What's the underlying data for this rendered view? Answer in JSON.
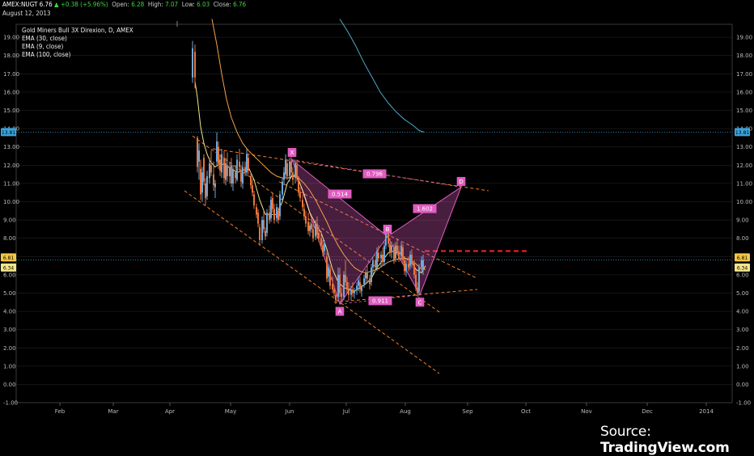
{
  "header": {
    "symbol": "AMEX:NUGT 6.76",
    "change": "+0.38 (+5.96%)",
    "open_label": "Open:",
    "open": "6.28",
    "high_label": "High:",
    "high": "7.07",
    "low_label": "Low:",
    "low": "6.03",
    "close_label": "Close:",
    "close": "6.76",
    "date": "August 12, 2013"
  },
  "legend": {
    "title": "Gold Miners Bull 3X Direxion, D, AMEX",
    "items": [
      "EMA (30, close)",
      "EMA (9, close)",
      "EMA (100, close)"
    ]
  },
  "source": {
    "prefix": "Source: ",
    "brand": "TradingView.com"
  },
  "colors": {
    "background": "#000000",
    "grid": "#2a2a2a",
    "up": "#6fa8dc",
    "down": "#e8743b",
    "ema9": "#f0e68c",
    "ema30": "#f4a24a",
    "ema100": "#4ea6c8",
    "pattern": "#e05cc0",
    "dash_red": "#ff2020",
    "channel": "#f08030"
  },
  "chart_data": {
    "type": "candlestick",
    "title": "Gold Miners Bull 3X Direxion, D, AMEX",
    "ylim": [
      -1.0,
      19.5
    ],
    "y_ticks": [
      "-1.00",
      "0.00",
      "1.00",
      "2.00",
      "3.00",
      "4.00",
      "5.00",
      "6.00",
      "7.00",
      "8.00",
      "9.00",
      "10.00",
      "11.00",
      "12.00",
      "13.00",
      "14.00",
      "15.00",
      "16.00",
      "17.00",
      "18.00",
      "19.00"
    ],
    "x_ticks": [
      "Feb",
      "Mar",
      "Apr",
      "May",
      "Jun",
      "Jul",
      "Aug",
      "Sep",
      "Oct",
      "Nov",
      "Dec",
      "2014"
    ],
    "price_badges_right": [
      {
        "label": "13.81",
        "value": 13.81,
        "color": "#3aa3dc"
      },
      {
        "label": "6.81",
        "value": 6.95,
        "color": "#f2c744"
      },
      {
        "label": "6.34",
        "value": 6.4,
        "color": "#f2e58a"
      }
    ],
    "price_badges_left": [
      {
        "label": "13.81",
        "value": 13.81,
        "color": "#3aa3dc"
      },
      {
        "label": "6.81",
        "value": 6.95,
        "color": "#f2c744"
      },
      {
        "label": "6.34",
        "value": 6.4,
        "color": "#f2e58a"
      }
    ],
    "horizontal_lines": [
      {
        "value": 13.81,
        "color": "#3aa3dc",
        "style": "dotted"
      },
      {
        "value": 6.81,
        "color": "#3aa3dc",
        "style": "dotted"
      }
    ],
    "candles": [
      [
        238,
        16.8,
        18.8,
        16.5,
        18.4
      ],
      [
        241,
        18.2,
        18.6,
        16.2,
        16.8
      ],
      [
        244,
        13.5,
        13.6,
        11.6,
        11.9
      ],
      [
        246,
        12.2,
        13.2,
        11.2,
        12.8
      ],
      [
        248,
        11.8,
        12.3,
        10.1,
        10.4
      ],
      [
        250,
        10.5,
        11.9,
        10.0,
        11.6
      ],
      [
        252,
        12.4,
        12.6,
        10.9,
        11.1
      ],
      [
        254,
        11.0,
        11.3,
        9.8,
        10.2
      ],
      [
        256,
        10.3,
        11.7,
        10.1,
        11.4
      ],
      [
        259,
        11.3,
        12.4,
        11.0,
        12.1
      ],
      [
        261,
        12.0,
        12.8,
        11.4,
        11.6
      ],
      [
        264,
        11.5,
        12.2,
        10.6,
        10.9
      ],
      [
        266,
        10.8,
        11.2,
        10.2,
        11.0
      ],
      [
        268,
        12.2,
        13.8,
        12.0,
        13.3
      ],
      [
        270,
        13.0,
        13.3,
        11.8,
        12.1
      ],
      [
        272,
        12.3,
        12.6,
        11.4,
        11.7
      ],
      [
        274,
        11.6,
        12.9,
        11.3,
        12.6
      ],
      [
        277,
        12.4,
        12.8,
        11.0,
        11.3
      ],
      [
        279,
        11.2,
        12.4,
        10.9,
        12.1
      ],
      [
        281,
        12.0,
        12.7,
        11.1,
        11.4
      ],
      [
        284,
        11.4,
        12.2,
        11.0,
        11.9
      ],
      [
        286,
        12.0,
        12.4,
        10.8,
        11.0
      ],
      [
        288,
        11.0,
        12.0,
        10.6,
        11.8
      ],
      [
        291,
        11.6,
        12.0,
        11.0,
        11.3
      ],
      [
        293,
        11.2,
        12.6,
        11.1,
        12.3
      ],
      [
        296,
        12.2,
        12.9,
        11.6,
        11.9
      ],
      [
        298,
        11.6,
        12.0,
        10.8,
        11.1
      ],
      [
        300,
        11.0,
        12.2,
        10.7,
        11.9
      ],
      [
        303,
        11.9,
        12.2,
        11.4,
        11.6
      ],
      [
        305,
        11.6,
        12.9,
        11.4,
        12.6
      ],
      [
        307,
        12.4,
        12.6,
        11.5,
        11.7
      ],
      [
        310,
        11.4,
        11.6,
        10.7,
        10.9
      ],
      [
        312,
        10.9,
        11.2,
        10.3,
        10.5
      ],
      [
        314,
        10.4,
        10.6,
        9.6,
        9.8
      ],
      [
        317,
        9.7,
        9.9,
        9.1,
        9.3
      ],
      [
        319,
        9.4,
        9.6,
        8.6,
        8.8
      ],
      [
        321,
        8.6,
        8.8,
        7.6,
        7.9
      ],
      [
        324,
        7.9,
        9.2,
        7.7,
        9.0
      ],
      [
        326,
        9.0,
        9.5,
        8.3,
        8.5
      ],
      [
        328,
        8.4,
        8.6,
        7.9,
        8.1
      ],
      [
        330,
        8.3,
        9.6,
        8.1,
        9.4
      ],
      [
        333,
        9.4,
        9.8,
        8.8,
        9.0
      ],
      [
        335,
        9.1,
        10.3,
        8.9,
        10.1
      ],
      [
        337,
        10.2,
        10.5,
        9.4,
        9.6
      ],
      [
        339,
        9.6,
        9.9,
        8.8,
        9.0
      ],
      [
        342,
        9.1,
        9.9,
        8.9,
        9.7
      ],
      [
        344,
        9.5,
        9.7,
        8.8,
        9.0
      ],
      [
        346,
        9.2,
        10.6,
        9.0,
        10.4
      ],
      [
        349,
        10.4,
        11.3,
        10.1,
        11.1
      ],
      [
        351,
        11.2,
        11.9,
        10.9,
        11.6
      ],
      [
        353,
        11.5,
        12.6,
        11.3,
        12.3
      ],
      [
        355,
        12.1,
        12.3,
        11.2,
        11.4
      ],
      [
        358,
        11.4,
        12.4,
        11.1,
        12.2
      ],
      [
        360,
        12.2,
        12.6,
        11.4,
        11.6
      ],
      [
        362,
        11.6,
        11.9,
        10.9,
        11.2
      ],
      [
        365,
        11.3,
        12.3,
        11.0,
        12.1
      ],
      [
        367,
        12.0,
        12.3,
        11.1,
        11.3
      ],
      [
        369,
        11.2,
        11.4,
        10.3,
        10.5
      ],
      [
        371,
        10.5,
        10.8,
        10.0,
        10.2
      ],
      [
        374,
        10.1,
        10.4,
        9.5,
        9.7
      ],
      [
        376,
        9.6,
        9.9,
        9.0,
        9.2
      ],
      [
        378,
        9.2,
        9.5,
        8.6,
        8.8
      ],
      [
        381,
        8.9,
        9.4,
        8.2,
        8.4
      ],
      [
        383,
        8.4,
        8.9,
        8.1,
        8.7
      ],
      [
        385,
        8.8,
        9.2,
        8.3,
        8.5
      ],
      [
        387,
        8.5,
        8.8,
        7.8,
        8.0
      ],
      [
        390,
        8.1,
        9.0,
        7.9,
        8.8
      ],
      [
        392,
        8.8,
        9.2,
        8.0,
        8.2
      ],
      [
        394,
        8.3,
        8.6,
        7.8,
        8.0
      ],
      [
        397,
        8.0,
        8.4,
        7.4,
        7.6
      ],
      [
        399,
        7.6,
        7.9,
        7.0,
        7.2
      ],
      [
        401,
        7.3,
        7.9,
        7.1,
        7.7
      ],
      [
        404,
        7.0,
        7.2,
        5.6,
        5.8
      ],
      [
        406,
        5.9,
        6.6,
        5.6,
        6.4
      ],
      [
        408,
        6.3,
        6.5,
        5.2,
        5.4
      ],
      [
        411,
        5.5,
        5.9,
        5.0,
        5.2
      ],
      [
        413,
        5.2,
        5.4,
        4.8,
        5.0
      ],
      [
        415,
        4.9,
        5.1,
        4.4,
        4.6
      ],
      [
        418,
        4.8,
        6.4,
        4.6,
        6.0
      ],
      [
        420,
        6.0,
        6.4,
        4.8,
        5.0
      ],
      [
        422,
        5.0,
        5.3,
        4.5,
        4.8
      ],
      [
        425,
        4.8,
        6.2,
        4.6,
        6.0
      ],
      [
        427,
        6.0,
        6.8,
        5.4,
        5.6
      ],
      [
        429,
        5.6,
        5.9,
        5.0,
        5.2
      ],
      [
        431,
        5.2,
        5.6,
        4.6,
        4.9
      ],
      [
        434,
        4.9,
        5.4,
        4.6,
        5.2
      ],
      [
        436,
        5.2,
        5.6,
        4.8,
        5.0
      ],
      [
        438,
        5.0,
        5.3,
        4.7,
        5.1
      ],
      [
        441,
        5.2,
        5.6,
        4.9,
        5.4
      ],
      [
        443,
        5.4,
        5.9,
        5.1,
        5.7
      ],
      [
        445,
        5.6,
        5.9,
        5.0,
        5.2
      ],
      [
        447,
        5.1,
        5.5,
        4.8,
        5.4
      ],
      [
        450,
        5.5,
        6.0,
        5.3,
        5.8
      ],
      [
        452,
        5.8,
        6.3,
        5.5,
        6.1
      ],
      [
        454,
        6.1,
        6.5,
        5.6,
        5.8
      ],
      [
        457,
        5.8,
        6.0,
        5.2,
        5.5
      ],
      [
        459,
        5.6,
        6.6,
        5.4,
        6.4
      ],
      [
        461,
        6.4,
        7.0,
        6.0,
        6.8
      ],
      [
        464,
        6.8,
        7.1,
        6.2,
        6.4
      ],
      [
        466,
        6.4,
        7.5,
        6.2,
        7.3
      ],
      [
        468,
        7.2,
        7.6,
        6.7,
        6.9
      ],
      [
        471,
        6.9,
        7.3,
        6.4,
        7.1
      ],
      [
        473,
        7.1,
        7.5,
        6.5,
        6.7
      ],
      [
        475,
        6.7,
        7.8,
        6.5,
        7.6
      ],
      [
        477,
        7.6,
        8.7,
        7.4,
        8.4
      ],
      [
        480,
        8.3,
        8.5,
        7.5,
        7.7
      ],
      [
        482,
        7.7,
        8.0,
        7.0,
        7.2
      ],
      [
        484,
        7.3,
        7.8,
        6.9,
        7.6
      ],
      [
        487,
        7.5,
        7.7,
        6.6,
        6.8
      ],
      [
        489,
        6.9,
        7.8,
        6.7,
        7.6
      ],
      [
        491,
        7.6,
        8.0,
        7.1,
        7.3
      ],
      [
        493,
        7.3,
        7.6,
        6.7,
        6.9
      ],
      [
        496,
        7.0,
        7.8,
        6.8,
        7.6
      ],
      [
        498,
        7.5,
        7.7,
        6.6,
        6.8
      ],
      [
        500,
        6.8,
        7.0,
        6.0,
        6.2
      ],
      [
        502,
        6.2,
        6.8,
        5.9,
        6.6
      ],
      [
        505,
        6.6,
        7.0,
        6.2,
        6.4
      ],
      [
        507,
        6.5,
        7.3,
        6.3,
        7.1
      ],
      [
        509,
        7.1,
        7.4,
        6.4,
        6.6
      ],
      [
        512,
        6.6,
        6.8,
        5.8,
        6.0
      ],
      [
        514,
        6.0,
        6.3,
        5.1,
        5.3
      ],
      [
        516,
        5.3,
        5.6,
        4.8,
        5.0
      ],
      [
        518,
        5.1,
        6.6,
        4.9,
        6.4
      ],
      [
        521,
        6.4,
        7.0,
        6.2,
        6.8
      ],
      [
        523,
        6.3,
        7.1,
        6.0,
        6.8
      ]
    ],
    "ema9": [
      [
        241,
        16.6
      ],
      [
        244,
        15.7
      ],
      [
        246,
        14.9
      ],
      [
        248,
        14.1
      ],
      [
        252,
        13.2
      ],
      [
        256,
        12.6
      ],
      [
        260,
        12.2
      ],
      [
        266,
        11.9
      ],
      [
        272,
        12.1
      ],
      [
        279,
        12.0
      ],
      [
        286,
        11.8
      ],
      [
        293,
        11.6
      ],
      [
        300,
        11.7
      ],
      [
        307,
        11.9
      ],
      [
        314,
        11.2
      ],
      [
        321,
        10.1
      ],
      [
        328,
        9.3
      ],
      [
        335,
        9.3
      ],
      [
        342,
        9.3
      ],
      [
        349,
        10.0
      ],
      [
        355,
        11.0
      ],
      [
        362,
        11.5
      ],
      [
        369,
        11.2
      ],
      [
        376,
        10.4
      ],
      [
        383,
        9.4
      ],
      [
        390,
        8.8
      ],
      [
        397,
        8.3
      ],
      [
        404,
        7.4
      ],
      [
        411,
        6.3
      ],
      [
        418,
        5.6
      ],
      [
        425,
        5.3
      ],
      [
        432,
        5.2
      ],
      [
        438,
        5.1
      ],
      [
        445,
        5.3
      ],
      [
        452,
        5.5
      ],
      [
        459,
        5.8
      ],
      [
        466,
        6.4
      ],
      [
        473,
        6.8
      ],
      [
        480,
        7.2
      ],
      [
        487,
        7.3
      ],
      [
        494,
        7.2
      ],
      [
        501,
        6.9
      ],
      [
        508,
        6.8
      ],
      [
        514,
        6.3
      ],
      [
        521,
        6.1
      ],
      [
        526,
        6.5
      ]
    ],
    "ema30": [
      [
        262,
        20.0
      ],
      [
        268,
        18.6
      ],
      [
        274,
        17.0
      ],
      [
        280,
        15.6
      ],
      [
        286,
        14.6
      ],
      [
        293,
        13.8
      ],
      [
        300,
        13.2
      ],
      [
        307,
        12.8
      ],
      [
        314,
        12.5
      ],
      [
        321,
        12.2
      ],
      [
        328,
        11.9
      ],
      [
        335,
        11.6
      ],
      [
        342,
        11.4
      ],
      [
        349,
        11.3
      ],
      [
        356,
        11.3
      ],
      [
        362,
        11.4
      ],
      [
        369,
        11.3
      ],
      [
        376,
        11.0
      ],
      [
        383,
        10.6
      ],
      [
        390,
        10.1
      ],
      [
        397,
        9.5
      ],
      [
        404,
        8.9
      ],
      [
        411,
        8.2
      ],
      [
        418,
        7.6
      ],
      [
        425,
        7.1
      ],
      [
        432,
        6.7
      ],
      [
        438,
        6.4
      ],
      [
        445,
        6.2
      ],
      [
        452,
        6.1
      ],
      [
        459,
        6.2
      ],
      [
        466,
        6.3
      ],
      [
        473,
        6.5
      ],
      [
        480,
        6.7
      ],
      [
        487,
        6.8
      ],
      [
        494,
        6.9
      ],
      [
        501,
        6.9
      ],
      [
        508,
        6.8
      ],
      [
        514,
        6.6
      ],
      [
        521,
        6.3
      ],
      [
        526,
        6.3
      ]
    ],
    "ema100": [
      [
        420,
        20.0
      ],
      [
        430,
        19.3
      ],
      [
        440,
        18.5
      ],
      [
        450,
        17.6
      ],
      [
        460,
        16.8
      ],
      [
        470,
        16.0
      ],
      [
        480,
        15.4
      ],
      [
        490,
        14.9
      ],
      [
        500,
        14.5
      ],
      [
        510,
        14.2
      ],
      [
        518,
        13.9
      ],
      [
        524,
        13.81
      ]
    ],
    "harmonic_pattern": {
      "points": {
        "X": [
          361,
          12.3
        ],
        "A": [
          420,
          4.4
        ],
        "B": [
          479,
          8.1
        ],
        "C": [
          519,
          4.9
        ],
        "D": [
          570,
          10.8
        ]
      },
      "point_labels": [
        "X",
        "A",
        "B",
        "C",
        "D"
      ],
      "ratios": [
        {
          "label": "0.796",
          "value": 0.796
        },
        {
          "label": "0.514",
          "value": 0.514
        },
        {
          "label": "1.602",
          "value": 1.602
        },
        {
          "label": "0.911",
          "value": 0.911
        }
      ]
    },
    "trendlines": [
      {
        "from": [
          263,
          12.9
        ],
        "to": [
          604,
          10.6
        ],
        "color": "#f08030",
        "style": "dashed"
      },
      {
        "from": [
          238,
          13.6
        ],
        "to": [
          545,
          3.9
        ],
        "color": "#f08030",
        "style": "dashed"
      },
      {
        "from": [
          228,
          10.6
        ],
        "to": [
          543,
          0.6
        ],
        "color": "#f08030",
        "style": "dashed"
      },
      {
        "from": [
          413,
          4.5
        ],
        "to": [
          590,
          5.2
        ],
        "color": "#f08030",
        "style": "dashed"
      },
      {
        "from": [
          345,
          11.1
        ],
        "to": [
          590,
          5.8
        ],
        "color": "#f08030",
        "style": "dashed"
      },
      {
        "from": [
          525,
          7.3
        ],
        "to": [
          652,
          7.3
        ],
        "color": "#ff2020",
        "style": "dashed"
      }
    ]
  }
}
